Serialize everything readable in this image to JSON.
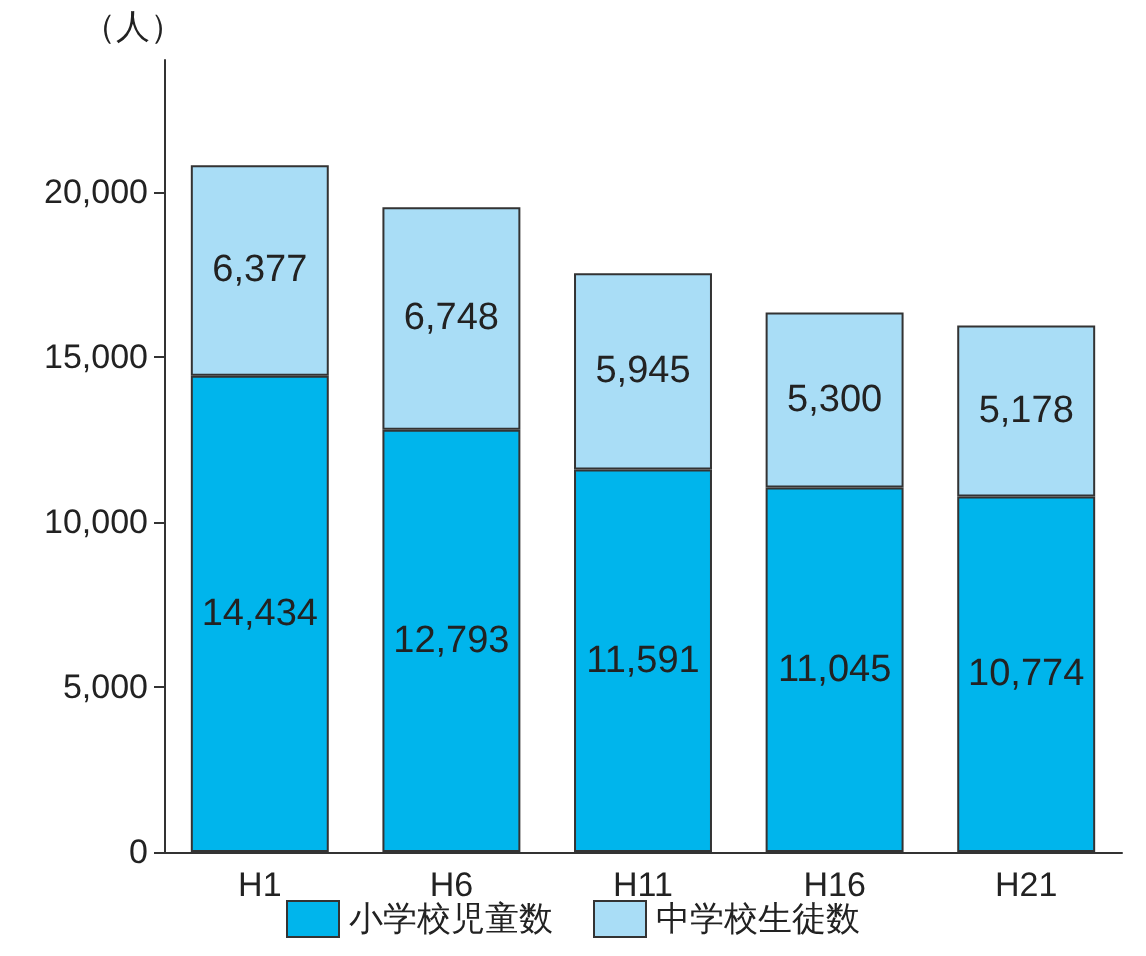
{
  "chart_data": {
    "type": "bar",
    "ylabel": "（人）",
    "categories": [
      "H1",
      "H6",
      "H11",
      "H16",
      "H21"
    ],
    "stacked": true,
    "series": [
      {
        "name": "小学校児童数",
        "color": "#00b5ec",
        "values": [
          14434,
          12793,
          11591,
          11045,
          10774
        ],
        "value_labels": [
          "14,434",
          "12,793",
          "11,591",
          "11,045",
          "10,774"
        ]
      },
      {
        "name": "中学校生徒数",
        "color": "#a9ddf6",
        "values": [
          6377,
          6748,
          5945,
          5300,
          5178
        ],
        "value_labels": [
          "6,377",
          "6,748",
          "5,945",
          "5,300",
          "5,178"
        ]
      }
    ],
    "ylim": [
      0,
      24000
    ],
    "yticks": [
      0,
      {
        "value": 5000,
        "label": "5,000"
      },
      {
        "value": 10000,
        "label": "10,000"
      },
      {
        "value": 15000,
        "label": "15,000"
      },
      {
        "value": 20000,
        "label": "20,000"
      }
    ],
    "grid": false,
    "legend": "bottom"
  }
}
